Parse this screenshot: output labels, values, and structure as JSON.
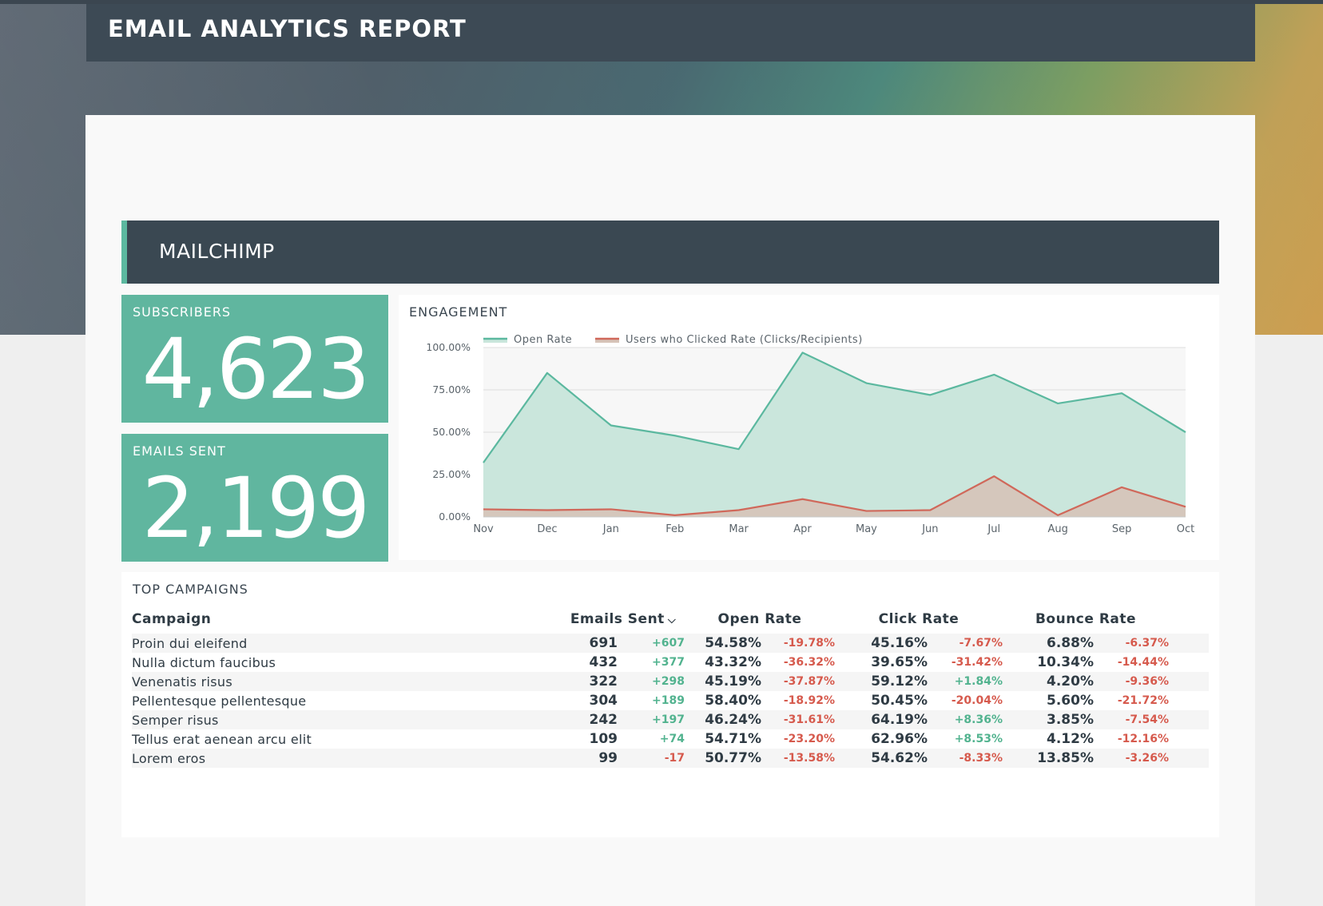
{
  "report": {
    "title": "EMAIL ANALYTICS REPORT"
  },
  "section": {
    "title": "MAILCHIMP"
  },
  "kpis": {
    "subscribers": {
      "label": "SUBSCRIBERS",
      "value": "4,623"
    },
    "emails_sent": {
      "label": "EMAILS SENT",
      "value": "2,199"
    }
  },
  "engagement": {
    "title": "ENGAGEMENT"
  },
  "chart_data": {
    "type": "area",
    "title": "ENGAGEMENT",
    "categories": [
      "Nov",
      "Dec",
      "Jan",
      "Feb",
      "Mar",
      "Apr",
      "May",
      "Jun",
      "Jul",
      "Aug",
      "Sep",
      "Oct"
    ],
    "ylim": [
      0,
      100
    ],
    "yticks": [
      "0.00%",
      "25.00%",
      "50.00%",
      "75.00%",
      "100.00%"
    ],
    "series": [
      {
        "name": "Open Rate",
        "color": "#5bb89f",
        "fill": "#cae6dc",
        "values": [
          32,
          85,
          54,
          48,
          40,
          97,
          79,
          72,
          84,
          67,
          73,
          50
        ]
      },
      {
        "name": "Users who Clicked Rate (Clicks/Recipients)",
        "color": "#d0685a",
        "fill": "#d6c3b8",
        "values": [
          4.5,
          4,
          4.5,
          1,
          4,
          10.5,
          3.5,
          4,
          24,
          1,
          17.5,
          6
        ]
      }
    ],
    "grid": true,
    "legend": "top-left"
  },
  "campaigns": {
    "title": "TOP CAMPAIGNS",
    "columns": {
      "campaign": "Campaign",
      "emails_sent": "Emails Sent",
      "open_rate": "Open Rate",
      "click_rate": "Click Rate",
      "bounce_rate": "Bounce Rate"
    },
    "sort_icon": "chevron-down-icon",
    "rows": [
      {
        "name": "Proin dui eleifend",
        "sent": "691",
        "sent_d": "+607",
        "open": "54.58%",
        "open_d": "-19.78%",
        "click": "45.16%",
        "click_d": "-7.67%",
        "bounce": "6.88%",
        "bounce_d": "-6.37%"
      },
      {
        "name": "Nulla dictum faucibus",
        "sent": "432",
        "sent_d": "+377",
        "open": "43.32%",
        "open_d": "-36.32%",
        "click": "39.65%",
        "click_d": "-31.42%",
        "bounce": "10.34%",
        "bounce_d": "-14.44%"
      },
      {
        "name": "Venenatis risus",
        "sent": "322",
        "sent_d": "+298",
        "open": "45.19%",
        "open_d": "-37.87%",
        "click": "59.12%",
        "click_d": "+1.84%",
        "bounce": "4.20%",
        "bounce_d": "-9.36%"
      },
      {
        "name": "Pellentesque pellentesque",
        "sent": "304",
        "sent_d": "+189",
        "open": "58.40%",
        "open_d": "-18.92%",
        "click": "50.45%",
        "click_d": "-20.04%",
        "bounce": "5.60%",
        "bounce_d": "-21.72%"
      },
      {
        "name": "Semper risus",
        "sent": "242",
        "sent_d": "+197",
        "open": "46.24%",
        "open_d": "-31.61%",
        "click": "64.19%",
        "click_d": "+8.36%",
        "bounce": "3.85%",
        "bounce_d": "-7.54%"
      },
      {
        "name": "Tellus erat aenean arcu elit",
        "sent": "109",
        "sent_d": "+74",
        "open": "54.71%",
        "open_d": "-23.20%",
        "click": "62.96%",
        "click_d": "+8.53%",
        "bounce": "4.12%",
        "bounce_d": "-12.16%"
      },
      {
        "name": "Lorem eros",
        "sent": "99",
        "sent_d": "-17",
        "open": "50.77%",
        "open_d": "-13.58%",
        "click": "54.62%",
        "click_d": "-8.33%",
        "bounce": "13.85%",
        "bounce_d": "-3.26%"
      }
    ]
  }
}
